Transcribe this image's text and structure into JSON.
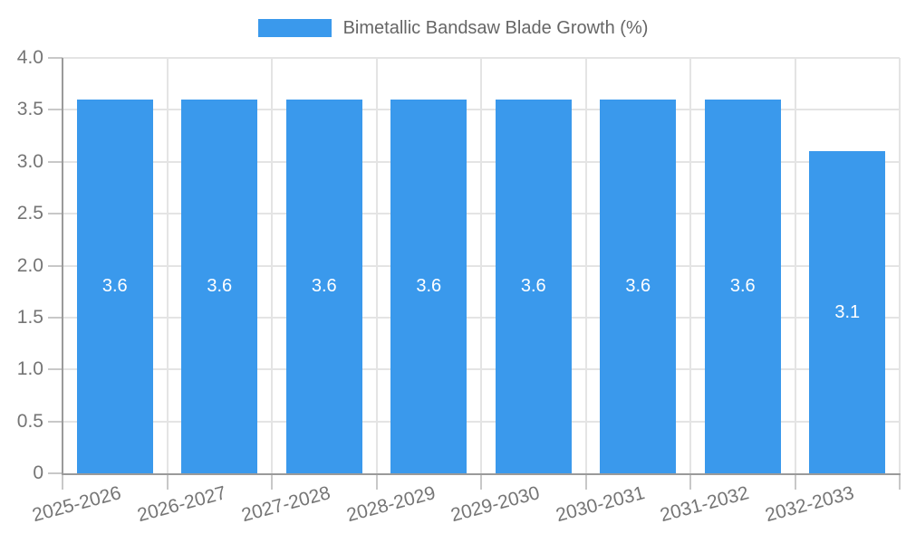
{
  "chart_data": {
    "type": "bar",
    "title": "Bimetallic Bandsaw Blade Growth (%)",
    "categories": [
      "2025-2026",
      "2026-2027",
      "2027-2028",
      "2028-2029",
      "2029-2030",
      "2030-2031",
      "2031-2032",
      "2032-2033"
    ],
    "values": [
      3.6,
      3.6,
      3.6,
      3.6,
      3.6,
      3.6,
      3.6,
      3.1
    ],
    "bar_labels": [
      "3.6",
      "3.6",
      "3.6",
      "3.6",
      "3.6",
      "3.6",
      "3.6",
      "3.1"
    ],
    "xlabel": "",
    "ylabel": "",
    "ylim": [
      0,
      4
    ],
    "ytick_step": 0.5,
    "ytick_labels": [
      "0",
      "0.5",
      "1.0",
      "1.5",
      "2.0",
      "2.5",
      "3.0",
      "3.5",
      "4.0"
    ],
    "grid": "on",
    "legend_position": "top-center",
    "x_label_rotation_deg": -15,
    "colors": {
      "bar": "#3A99EC",
      "bar_label_text": "#FFFFFF",
      "grid_line": "#E4E4E4",
      "axis_line": "#9A9A9A",
      "tick_mark": "#C8C8C8",
      "tick_text": "#757575",
      "legend_text": "#666666",
      "background": "#FFFFFF"
    }
  }
}
